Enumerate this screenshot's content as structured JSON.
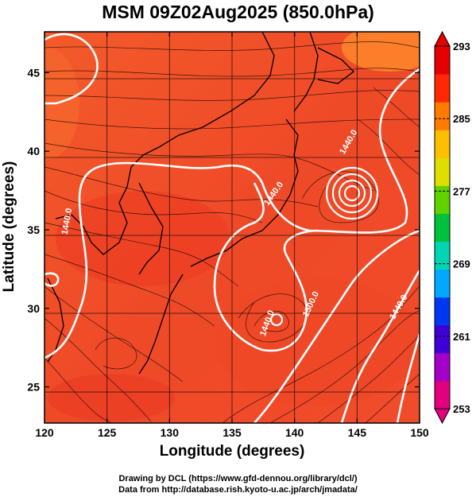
{
  "chart_data": {
    "type": "heatmap",
    "title": "MSM 09Z02Aug2025 (850.0hPa)",
    "xlabel": "Longitude (degrees)",
    "ylabel": "Latitude  (degrees)",
    "xlim": [
      120,
      150
    ],
    "ylim": [
      22.7,
      47.6
    ],
    "x_ticks": [
      "120",
      "125",
      "130",
      "135",
      "140",
      "145",
      "150"
    ],
    "y_ticks": [
      "25",
      "30",
      "35",
      "40",
      "45"
    ],
    "colorbar": {
      "min": 253,
      "max": 293,
      "labels": [
        "293",
        "285",
        "277",
        "269",
        "261",
        "253"
      ],
      "colors": [
        "#e3007e",
        "#a400c8",
        "#3f00d6",
        "#0037f0",
        "#00a8ff",
        "#00d6b3",
        "#00c13c",
        "#5fd200",
        "#dede00",
        "#ffbe00",
        "#ff7a00",
        "#ff2800",
        "#e60000"
      ]
    },
    "contour_labels": [
      "1440.0",
      "1440.0",
      "1440.0",
      "1440.0",
      "1500.0",
      "1440.0"
    ],
    "features": {
      "typhoon_center": [
        144.5,
        37.8
      ],
      "low_center": [
        138.5,
        29.8
      ]
    },
    "credits": [
      "Drawing by DCL (https://www.gfd-dennou.org/library/dcl/)",
      "Data from http://database.rish.kyoto-u.ac.jp/arch/jmadata/"
    ]
  }
}
